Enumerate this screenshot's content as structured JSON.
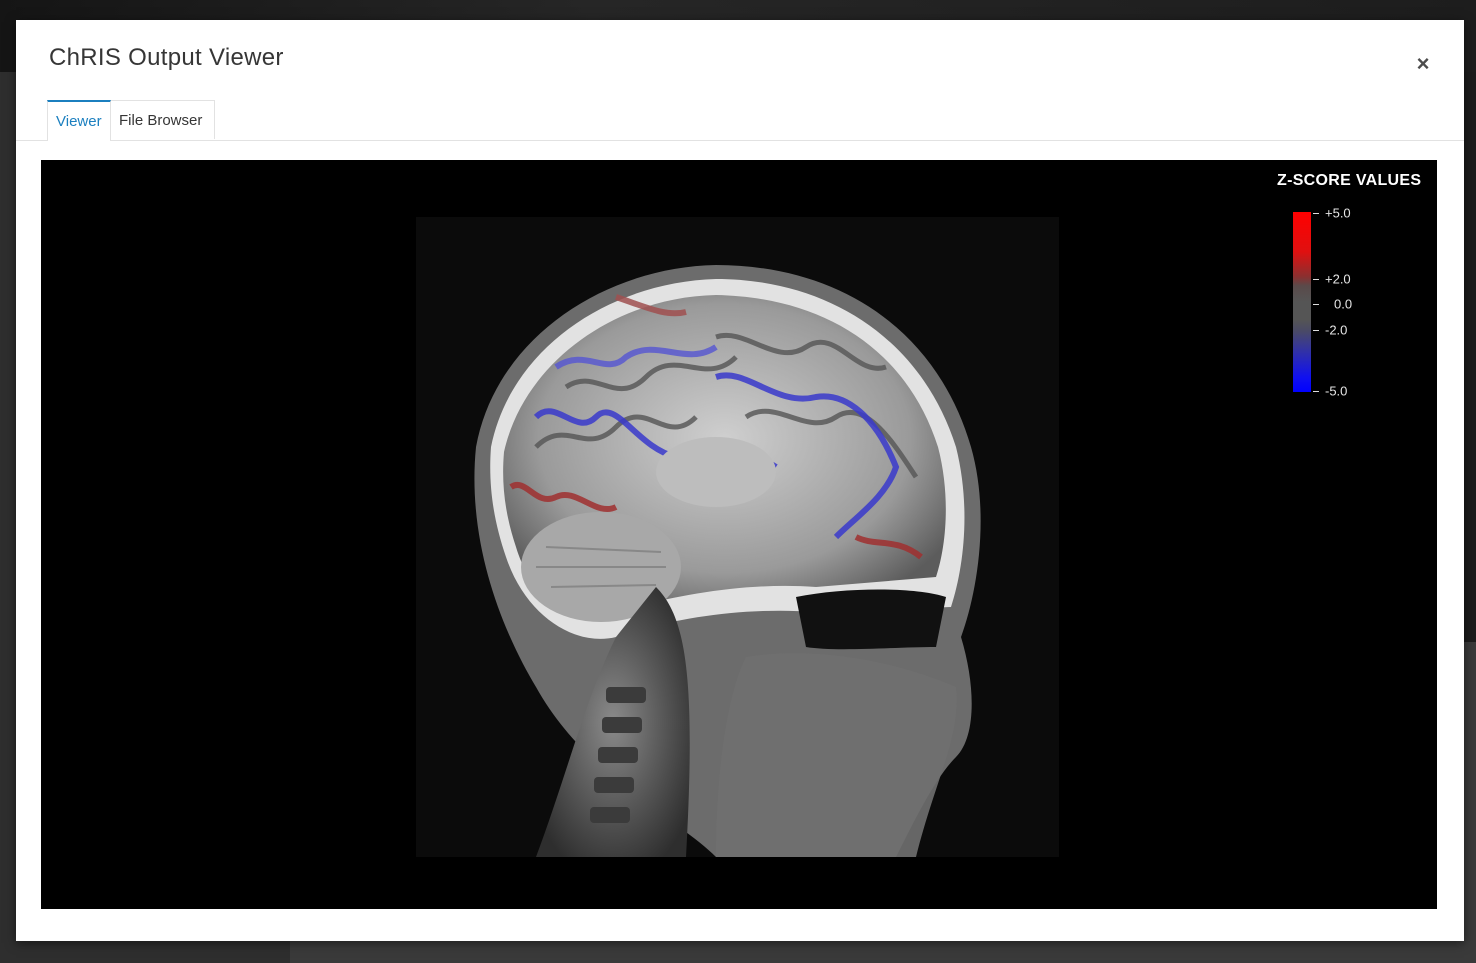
{
  "modal": {
    "title": "ChRIS Output Viewer",
    "close_label": "×"
  },
  "tabs": [
    {
      "label": "Viewer",
      "active": true
    },
    {
      "label": "File Browser",
      "active": false
    }
  ],
  "viewer": {
    "legend": {
      "title": "Z-SCORE VALUES",
      "ticks": [
        "+5.0",
        "+2.0",
        "0.0",
        "-2.0",
        "-5.0"
      ],
      "colors": {
        "high": "#ff0000",
        "neutral": "#555555",
        "low": "#0000ff"
      }
    }
  }
}
